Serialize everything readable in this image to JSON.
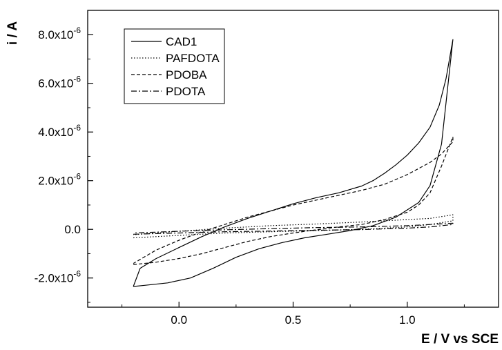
{
  "chart_data": {
    "type": "line",
    "title": "",
    "xlabel": "E / V vs SCE",
    "ylabel": "i / A",
    "xlim": [
      -0.4,
      1.4
    ],
    "ylim": [
      -3.2e-06,
      9e-06
    ],
    "grid": false,
    "legend_position": "top-left",
    "x_ticks": [
      {
        "value": 0.0,
        "label": "0.0"
      },
      {
        "value": 0.5,
        "label": "0.5"
      },
      {
        "value": 1.0,
        "label": "1.0"
      }
    ],
    "y_ticks": [
      {
        "value": -2e-06,
        "mantissa": "-2.0x10",
        "exp": "-6"
      },
      {
        "value": 0,
        "mantissa": "0.0",
        "exp": ""
      },
      {
        "value": 2e-06,
        "mantissa": "2.0x10",
        "exp": "-6"
      },
      {
        "value": 4e-06,
        "mantissa": "4.0x10",
        "exp": "-6"
      },
      {
        "value": 6e-06,
        "mantissa": "6.0x10",
        "exp": "-6"
      },
      {
        "value": 8e-06,
        "mantissa": "8.0x10",
        "exp": "-6"
      }
    ],
    "series": [
      {
        "name": "CAD1",
        "dash": "",
        "x": [
          -0.2,
          -0.15,
          -0.05,
          0.05,
          0.15,
          0.25,
          0.35,
          0.45,
          0.55,
          0.65,
          0.75,
          0.85,
          0.95,
          1.05,
          1.1,
          1.15,
          1.2,
          1.2,
          1.17,
          1.14,
          1.1,
          1.05,
          1.0,
          0.95,
          0.9,
          0.85,
          0.8,
          0.7,
          0.6,
          0.5,
          0.4,
          0.3,
          0.2,
          0.1,
          0.0,
          -0.1,
          -0.17,
          -0.2
        ],
        "y": [
          -2.35e-06,
          -2.3e-06,
          -2.2e-06,
          -2e-06,
          -1.6e-06,
          -1.15e-06,
          -8e-07,
          -5.5e-07,
          -3.5e-07,
          -2e-07,
          -5e-08,
          1.5e-07,
          5e-07,
          1.1e-06,
          1.8e-06,
          3.5e-06,
          7.8e-06,
          7.8e-06,
          6.2e-06,
          5.1e-06,
          4.2e-06,
          3.55e-06,
          3.05e-06,
          2.65e-06,
          2.3e-06,
          2e-06,
          1.78e-06,
          1.5e-06,
          1.3e-06,
          1.05e-06,
          7.5e-07,
          4.5e-07,
          1e-07,
          -3e-07,
          -7.5e-07,
          -1.2e-06,
          -1.6e-06,
          -2.35e-06
        ]
      },
      {
        "name": "PAFDOTA",
        "dash": "1.5,2.5",
        "x": [
          -0.2,
          0.0,
          0.2,
          0.4,
          0.6,
          0.8,
          1.0,
          1.1,
          1.2,
          1.2,
          1.1,
          1.0,
          0.8,
          0.6,
          0.4,
          0.2,
          0.0,
          -0.2
        ],
        "y": [
          -3.5e-07,
          -2.5e-07,
          -1.5e-07,
          -1e-07,
          -5e-08,
          0.0,
          1e-07,
          2e-07,
          3.5e-07,
          6e-07,
          4.5e-07,
          4e-07,
          3e-07,
          2.2e-07,
          1.5e-07,
          5e-08,
          -8e-08,
          -2.2e-07
        ]
      },
      {
        "name": "PDOBA",
        "dash": "5,3",
        "x": [
          -0.2,
          -0.1,
          0.0,
          0.1,
          0.2,
          0.3,
          0.4,
          0.5,
          0.6,
          0.7,
          0.8,
          0.9,
          1.0,
          1.05,
          1.1,
          1.15,
          1.2,
          1.2,
          1.15,
          1.1,
          1.05,
          1.0,
          0.95,
          0.9,
          0.8,
          0.7,
          0.6,
          0.5,
          0.4,
          0.3,
          0.2,
          0.1,
          0.0,
          -0.1,
          -0.2
        ],
        "y": [
          -1.45e-06,
          -1.35e-06,
          -1.2e-06,
          -1e-06,
          -7.5e-07,
          -5e-07,
          -3e-07,
          -1.5e-07,
          -2e-08,
          1e-07,
          2e-07,
          4e-07,
          7e-07,
          1e-06,
          1.5e-06,
          2.6e-06,
          3.8e-06,
          3.6e-06,
          3.1e-06,
          2.75e-06,
          2.5e-06,
          2.25e-06,
          2.05e-06,
          1.85e-06,
          1.6e-06,
          1.4e-06,
          1.2e-06,
          1e-06,
          7.5e-07,
          5e-07,
          2e-07,
          -1e-07,
          -4.5e-07,
          -8.5e-07,
          -1.4e-06
        ]
      },
      {
        "name": "PDOTA",
        "dash": "8,3,2,3",
        "x": [
          -0.2,
          0.0,
          0.2,
          0.4,
          0.6,
          0.8,
          1.0,
          1.1,
          1.2,
          1.2,
          1.1,
          1.0,
          0.8,
          0.6,
          0.4,
          0.2,
          0.0,
          -0.2
        ],
        "y": [
          -2e-07,
          -1.5e-07,
          -1e-07,
          -7e-08,
          -4e-08,
          -1e-08,
          5e-08,
          1e-07,
          2e-07,
          2.5e-07,
          2e-07,
          1.5e-07,
          1e-07,
          7e-08,
          3e-08,
          -2e-08,
          -8e-08,
          -1.5e-07
        ]
      }
    ]
  }
}
